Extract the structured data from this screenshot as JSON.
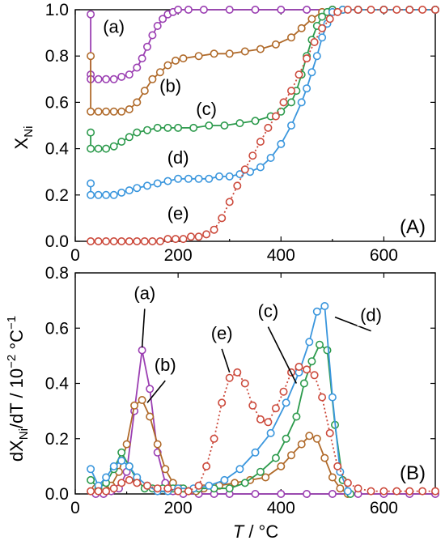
{
  "chart_data": [
    {
      "panel": "(A)",
      "type": "line",
      "title": "",
      "xlabel": "",
      "ylabel_main": "X",
      "ylabel_sub": "Ni",
      "xlim": [
        0,
        700
      ],
      "ylim": [
        0,
        1.0
      ],
      "xticks": [
        0,
        200,
        400,
        600
      ],
      "yticks": [
        "0.0",
        "0.2",
        "0.4",
        "0.6",
        "0.8",
        "1.0"
      ],
      "series": [
        {
          "name": "(a)",
          "color": "#9b3fb2",
          "style": "solid",
          "x": [
            30,
            30,
            30,
            45,
            60,
            75,
            90,
            105,
            120,
            130,
            140,
            150,
            160,
            170,
            180,
            190,
            200,
            220,
            250,
            300,
            350,
            400,
            450,
            500,
            550,
            600,
            650,
            700
          ],
          "y": [
            0.98,
            0.72,
            0.7,
            0.7,
            0.7,
            0.7,
            0.71,
            0.72,
            0.75,
            0.79,
            0.84,
            0.89,
            0.93,
            0.96,
            0.98,
            0.99,
            1.0,
            1.0,
            1.0,
            1.0,
            1.0,
            1.0,
            1.0,
            1.0,
            1.0,
            1.0,
            1.0,
            1.0
          ]
        },
        {
          "name": "(b)",
          "color": "#b06a2a",
          "style": "solid",
          "x": [
            30,
            30,
            45,
            60,
            75,
            90,
            105,
            120,
            135,
            150,
            165,
            180,
            195,
            210,
            240,
            270,
            300,
            330,
            360,
            390,
            420,
            440,
            460,
            480,
            500,
            520,
            550,
            600,
            650,
            700
          ],
          "y": [
            0.8,
            0.56,
            0.56,
            0.56,
            0.56,
            0.56,
            0.57,
            0.6,
            0.65,
            0.7,
            0.73,
            0.76,
            0.78,
            0.79,
            0.8,
            0.81,
            0.81,
            0.82,
            0.83,
            0.85,
            0.88,
            0.92,
            0.96,
            0.99,
            1.0,
            1.0,
            1.0,
            1.0,
            1.0,
            1.0
          ]
        },
        {
          "name": "(c)",
          "color": "#2c9a4c",
          "style": "solid",
          "x": [
            30,
            30,
            45,
            60,
            75,
            90,
            105,
            120,
            140,
            160,
            180,
            200,
            230,
            260,
            290,
            320,
            350,
            380,
            400,
            420,
            430,
            440,
            450,
            460,
            470,
            480,
            490,
            500,
            520,
            550,
            600,
            650,
            700
          ],
          "y": [
            0.47,
            0.4,
            0.4,
            0.4,
            0.41,
            0.43,
            0.45,
            0.47,
            0.48,
            0.49,
            0.49,
            0.49,
            0.49,
            0.5,
            0.5,
            0.51,
            0.52,
            0.54,
            0.56,
            0.6,
            0.65,
            0.72,
            0.8,
            0.87,
            0.93,
            0.97,
            0.99,
            1.0,
            1.0,
            1.0,
            1.0,
            1.0,
            1.0
          ]
        },
        {
          "name": "(d)",
          "color": "#3a96dd",
          "style": "solid",
          "x": [
            30,
            30,
            45,
            60,
            75,
            90,
            105,
            120,
            140,
            160,
            180,
            200,
            220,
            240,
            260,
            280,
            300,
            320,
            340,
            360,
            380,
            400,
            420,
            440,
            450,
            460,
            470,
            480,
            490,
            500,
            520,
            550,
            600,
            650,
            700
          ],
          "y": [
            0.25,
            0.2,
            0.2,
            0.2,
            0.2,
            0.21,
            0.22,
            0.23,
            0.24,
            0.25,
            0.26,
            0.27,
            0.27,
            0.27,
            0.27,
            0.28,
            0.28,
            0.29,
            0.3,
            0.32,
            0.36,
            0.42,
            0.5,
            0.6,
            0.66,
            0.73,
            0.8,
            0.88,
            0.94,
            0.99,
            1.0,
            1.0,
            1.0,
            1.0,
            1.0
          ]
        },
        {
          "name": "(e)",
          "color": "#cc4a3c",
          "style": "dotted",
          "x": [
            30,
            45,
            60,
            75,
            90,
            105,
            120,
            135,
            150,
            165,
            180,
            195,
            210,
            225,
            240,
            255,
            270,
            285,
            300,
            315,
            330,
            345,
            360,
            375,
            390,
            405,
            420,
            435,
            450,
            465,
            480,
            495,
            510,
            530,
            550,
            575,
            600,
            625,
            650,
            675,
            700
          ],
          "y": [
            0.0,
            0.0,
            0.0,
            0.0,
            0.0,
            0.0,
            0.0,
            0.0,
            0.0,
            0.0,
            0.01,
            0.01,
            0.01,
            0.02,
            0.02,
            0.03,
            0.05,
            0.1,
            0.17,
            0.24,
            0.31,
            0.37,
            0.43,
            0.49,
            0.54,
            0.6,
            0.65,
            0.72,
            0.79,
            0.86,
            0.92,
            0.96,
            0.99,
            1.0,
            1.0,
            1.0,
            1.0,
            1.0,
            1.0,
            1.0,
            1.0
          ]
        }
      ],
      "annotations": [
        {
          "text": "(a)",
          "x": 75,
          "y": 0.9
        },
        {
          "text": "(b)",
          "x": 185,
          "y": 0.645
        },
        {
          "text": "(c)",
          "x": 255,
          "y": 0.545
        },
        {
          "text": "(d)",
          "x": 200,
          "y": 0.335
        },
        {
          "text": "(e)",
          "x": 200,
          "y": 0.095
        }
      ]
    },
    {
      "panel": "(B)",
      "type": "line",
      "title": "",
      "xlabel_main": "T",
      "xlabel_unit": " / °C",
      "ylabel_main": "dX",
      "ylabel_sub": "Ni",
      "ylabel_rest": "/dT / 10",
      "ylabel_exp1": "−2",
      "ylabel_unit": " °C",
      "ylabel_exp2": "−1",
      "xlim": [
        0,
        700
      ],
      "ylim": [
        0,
        0.8
      ],
      "xticks": [
        0,
        200,
        400,
        600
      ],
      "yticks": [
        "0.0",
        "0.2",
        "0.4",
        "0.6",
        "0.8"
      ],
      "series": [
        {
          "name": "(a)",
          "color": "#9b3fb2",
          "style": "solid",
          "x": [
            40,
            55,
            70,
            85,
            100,
            115,
            130,
            145,
            160,
            175,
            190,
            210,
            240,
            270,
            300,
            350,
            400,
            450,
            500,
            550,
            600,
            650,
            700
          ],
          "y": [
            0.0,
            0.0,
            0.01,
            0.02,
            0.08,
            0.3,
            0.52,
            0.38,
            0.15,
            0.04,
            0.01,
            0.0,
            0.0,
            0.0,
            0.0,
            0.0,
            0.0,
            0.0,
            0.0,
            0.0,
            0.0,
            0.0,
            0.0
          ]
        },
        {
          "name": "(b)",
          "color": "#b06a2a",
          "style": "solid",
          "x": [
            40,
            55,
            70,
            85,
            100,
            115,
            130,
            145,
            160,
            175,
            190,
            205,
            220,
            235,
            250,
            280,
            310,
            340,
            370,
            400,
            420,
            440,
            455,
            470,
            485,
            500,
            515,
            530
          ],
          "y": [
            0.02,
            0.02,
            0.03,
            0.08,
            0.18,
            0.32,
            0.34,
            0.28,
            0.18,
            0.09,
            0.04,
            0.02,
            0.01,
            0.01,
            0.02,
            0.03,
            0.04,
            0.05,
            0.06,
            0.1,
            0.14,
            0.18,
            0.21,
            0.2,
            0.13,
            0.06,
            0.02,
            0.0
          ]
        },
        {
          "name": "(c)",
          "color": "#2c9a4c",
          "style": "solid",
          "x": [
            30,
            45,
            60,
            75,
            90,
            105,
            120,
            135,
            150,
            170,
            190,
            210,
            240,
            270,
            300,
            330,
            360,
            390,
            410,
            430,
            445,
            460,
            475,
            490,
            505,
            520,
            535
          ],
          "y": [
            0.05,
            0.02,
            0.04,
            0.09,
            0.15,
            0.1,
            0.05,
            0.02,
            0.02,
            0.02,
            0.02,
            0.02,
            0.02,
            0.02,
            0.02,
            0.04,
            0.08,
            0.13,
            0.2,
            0.28,
            0.4,
            0.48,
            0.54,
            0.52,
            0.25,
            0.05,
            0.0
          ]
        },
        {
          "name": "(d)",
          "color": "#3a96dd",
          "style": "solid",
          "x": [
            30,
            45,
            60,
            75,
            90,
            105,
            120,
            140,
            160,
            180,
            200,
            230,
            260,
            290,
            320,
            350,
            380,
            410,
            435,
            455,
            470,
            485,
            500,
            515,
            530
          ],
          "y": [
            0.09,
            0.03,
            0.06,
            0.1,
            0.12,
            0.1,
            0.06,
            0.03,
            0.01,
            0.01,
            0.02,
            0.02,
            0.03,
            0.05,
            0.09,
            0.15,
            0.22,
            0.33,
            0.44,
            0.55,
            0.66,
            0.68,
            0.35,
            0.08,
            0.01
          ]
        },
        {
          "name": "(e)",
          "color": "#cc4a3c",
          "style": "dotted",
          "x": [
            30,
            45,
            60,
            75,
            90,
            105,
            120,
            140,
            160,
            180,
            200,
            220,
            240,
            255,
            270,
            285,
            300,
            315,
            330,
            345,
            360,
            375,
            390,
            405,
            420,
            435,
            450,
            465,
            480,
            495,
            510,
            530,
            550,
            575,
            600,
            625,
            650,
            675,
            700
          ],
          "y": [
            0.01,
            0.01,
            0.01,
            0.02,
            0.04,
            0.05,
            0.04,
            0.03,
            0.02,
            0.02,
            0.01,
            0.01,
            0.03,
            0.1,
            0.2,
            0.33,
            0.42,
            0.44,
            0.4,
            0.32,
            0.27,
            0.26,
            0.31,
            0.37,
            0.44,
            0.46,
            0.45,
            0.43,
            0.35,
            0.22,
            0.1,
            0.04,
            0.02,
            0.01,
            0.01,
            0.01,
            0.01,
            0.01,
            0.01
          ]
        }
      ],
      "annotations": [
        {
          "text": "(a)",
          "x": 135,
          "y": 0.705,
          "tx": 130,
          "ty": 0.53
        },
        {
          "text": "(b)",
          "x": 175,
          "y": 0.445,
          "tx": 140,
          "ty": 0.33
        },
        {
          "text": "(c)",
          "x": 375,
          "y": 0.64,
          "tx": 430,
          "ty": 0.4
        },
        {
          "text": "(d)",
          "x": 575,
          "y": 0.625,
          "tx": 505,
          "ty": 0.64
        },
        {
          "text": "(e)",
          "x": 285,
          "y": 0.56,
          "tx": 300,
          "ty": 0.44
        }
      ]
    }
  ]
}
